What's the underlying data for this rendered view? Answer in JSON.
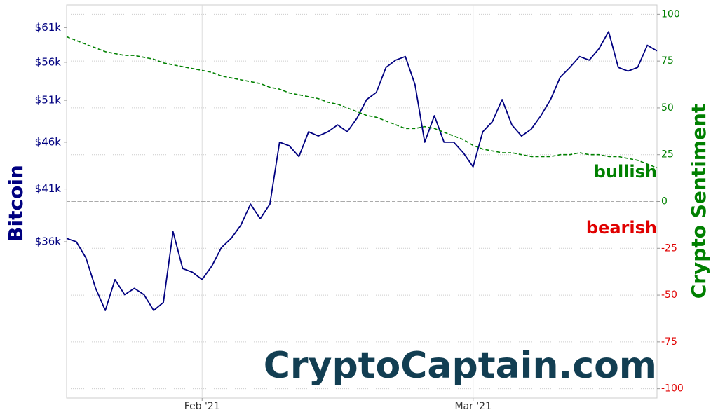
{
  "chart_data": {
    "type": "line",
    "y_label": "Bitcoin",
    "y2_label": "Crypto Sentiment",
    "watermark": "CryptoCaptain.com",
    "annotations": [
      {
        "text": "bullish",
        "color": "#008000"
      },
      {
        "text": "bearish",
        "color": "#e00000"
      }
    ],
    "categories": [
      null,
      null,
      null,
      null,
      null,
      null,
      null,
      null,
      null,
      null,
      null,
      null,
      null,
      null,
      "Feb '21",
      null,
      null,
      null,
      null,
      null,
      null,
      null,
      null,
      null,
      null,
      null,
      null,
      null,
      null,
      null,
      null,
      null,
      null,
      null,
      null,
      null,
      null,
      null,
      null,
      null,
      null,
      null,
      "Mar '21",
      null,
      null,
      null,
      null,
      null,
      null,
      null,
      null,
      null,
      null,
      null,
      null,
      null,
      null,
      null,
      null,
      null,
      null,
      null
    ],
    "series": [
      {
        "name": "Bitcoin",
        "axis": "y",
        "color": "#000080",
        "line_style": "solid",
        "values": [
          36300,
          36000,
          34600,
          32100,
          30400,
          32800,
          31600,
          32100,
          31600,
          30400,
          31000,
          36900,
          33700,
          33400,
          32800,
          33900,
          35500,
          36300,
          37500,
          39500,
          38100,
          39500,
          46000,
          45600,
          44400,
          47200,
          46700,
          47200,
          48000,
          47200,
          48800,
          51100,
          52000,
          55300,
          56300,
          56800,
          53000,
          46000,
          49100,
          46000,
          46000,
          44800,
          43300,
          47200,
          48400,
          51100,
          48000,
          46700,
          47500,
          49100,
          51100,
          54000,
          55300,
          56800,
          56300,
          57900,
          60400,
          55300,
          54800,
          55300,
          58400,
          57600
        ]
      },
      {
        "name": "Crypto Sentiment",
        "axis": "y2",
        "color": "#008000",
        "line_style": "dashed",
        "values": [
          88,
          86,
          84,
          82,
          80,
          79,
          78,
          78,
          77,
          76,
          74,
          73,
          72,
          71,
          70,
          69,
          67,
          66,
          65,
          64,
          63,
          61,
          60,
          58,
          57,
          56,
          55,
          53,
          52,
          50,
          48,
          46,
          45,
          43,
          41,
          39,
          39,
          40,
          39,
          37,
          35,
          33,
          30,
          28,
          27,
          26,
          26,
          25,
          24,
          24,
          24,
          25,
          25,
          26,
          25,
          25,
          24,
          24,
          23,
          22,
          20,
          18
        ]
      }
    ],
    "log_y": true,
    "ylim": [
      24500,
      64500
    ],
    "yticks": [
      {
        "value": 36000,
        "label": "$36k"
      },
      {
        "value": 41000,
        "label": "$41k"
      },
      {
        "value": 46000,
        "label": "$46k"
      },
      {
        "value": 51000,
        "label": "$51k"
      },
      {
        "value": 56000,
        "label": "$56k"
      },
      {
        "value": 61000,
        "label": "$61k"
      }
    ],
    "y2lim": [
      -105,
      105
    ],
    "y2ticks": [
      -100,
      -75,
      -50,
      -25,
      0,
      25,
      50,
      75,
      100
    ],
    "y2_positive_color": "#008000",
    "y2_negative_color": "#e00000",
    "grid": true,
    "zero_line": true
  }
}
